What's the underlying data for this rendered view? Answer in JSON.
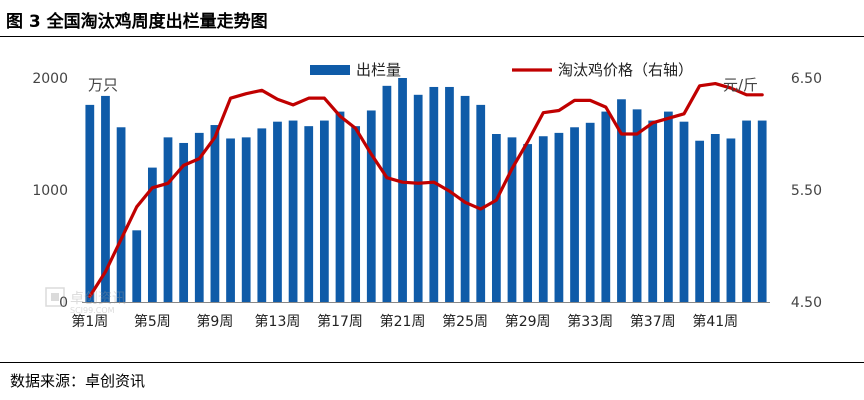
{
  "figure": {
    "title": "图 3 全国淘汰鸡周度出栏量走势图",
    "source": "数据来源：卓创资讯"
  },
  "watermark": {
    "brand": "卓创资讯",
    "site": "SCI99.COM"
  },
  "colors": {
    "bar": "#0f5ba8",
    "line": "#c00000",
    "axis_text": "#444444"
  },
  "chart_data": {
    "type": "bar",
    "title": "",
    "xlabel": "",
    "ylabel_left": "万只",
    "ylabel_right": "元/斤",
    "ylim_left": [
      0,
      2000
    ],
    "ylim_right": [
      4.5,
      6.5
    ],
    "yticks_left": [
      "0",
      "1000",
      "2000"
    ],
    "yticks_right": [
      "4.50",
      "5.50",
      "6.50"
    ],
    "grid": false,
    "legend_position": "top",
    "categories": [
      "第1周",
      "第2周",
      "第3周",
      "第4周",
      "第5周",
      "第6周",
      "第7周",
      "第8周",
      "第9周",
      "第10周",
      "第11周",
      "第12周",
      "第13周",
      "第14周",
      "第15周",
      "第16周",
      "第17周",
      "第18周",
      "第19周",
      "第20周",
      "第21周",
      "第22周",
      "第23周",
      "第24周",
      "第25周",
      "第26周",
      "第27周",
      "第28周",
      "第29周",
      "第30周",
      "第31周",
      "第32周",
      "第33周",
      "第34周",
      "第35周",
      "第36周",
      "第37周",
      "第38周",
      "第39周",
      "第40周",
      "第41周",
      "第42周",
      "第43周",
      "第44周"
    ],
    "xtick_labels": [
      "第1周",
      "第5周",
      "第9周",
      "第13周",
      "第17周",
      "第21周",
      "第25周",
      "第29周",
      "第33周",
      "第37周",
      "第41周"
    ],
    "series": [
      {
        "name": "出栏量",
        "type": "bar",
        "axis": "left",
        "values": [
          1760,
          1840,
          1560,
          640,
          1200,
          1470,
          1420,
          1510,
          1580,
          1460,
          1470,
          1550,
          1610,
          1620,
          1570,
          1620,
          1700,
          1570,
          1710,
          1930,
          2000,
          1850,
          1920,
          1920,
          1840,
          1760,
          1500,
          1470,
          1410,
          1480,
          1510,
          1560,
          1600,
          1700,
          1810,
          1720,
          1620,
          1700,
          1610,
          1440,
          1500,
          1460,
          1620,
          1620
        ]
      },
      {
        "name": "淘汰鸡价格（右轴）",
        "type": "line",
        "axis": "right",
        "values": [
          4.55,
          4.77,
          5.06,
          5.35,
          5.52,
          5.56,
          5.72,
          5.78,
          5.97,
          6.32,
          6.36,
          6.39,
          6.31,
          6.26,
          6.32,
          6.32,
          6.16,
          6.05,
          5.82,
          5.61,
          5.57,
          5.56,
          5.57,
          5.49,
          5.39,
          5.33,
          5.41,
          5.69,
          5.93,
          6.19,
          6.21,
          6.3,
          6.3,
          6.24,
          6.0,
          6.0,
          6.1,
          6.14,
          6.18,
          6.43,
          6.45,
          6.41,
          6.35,
          6.35
        ]
      }
    ]
  }
}
